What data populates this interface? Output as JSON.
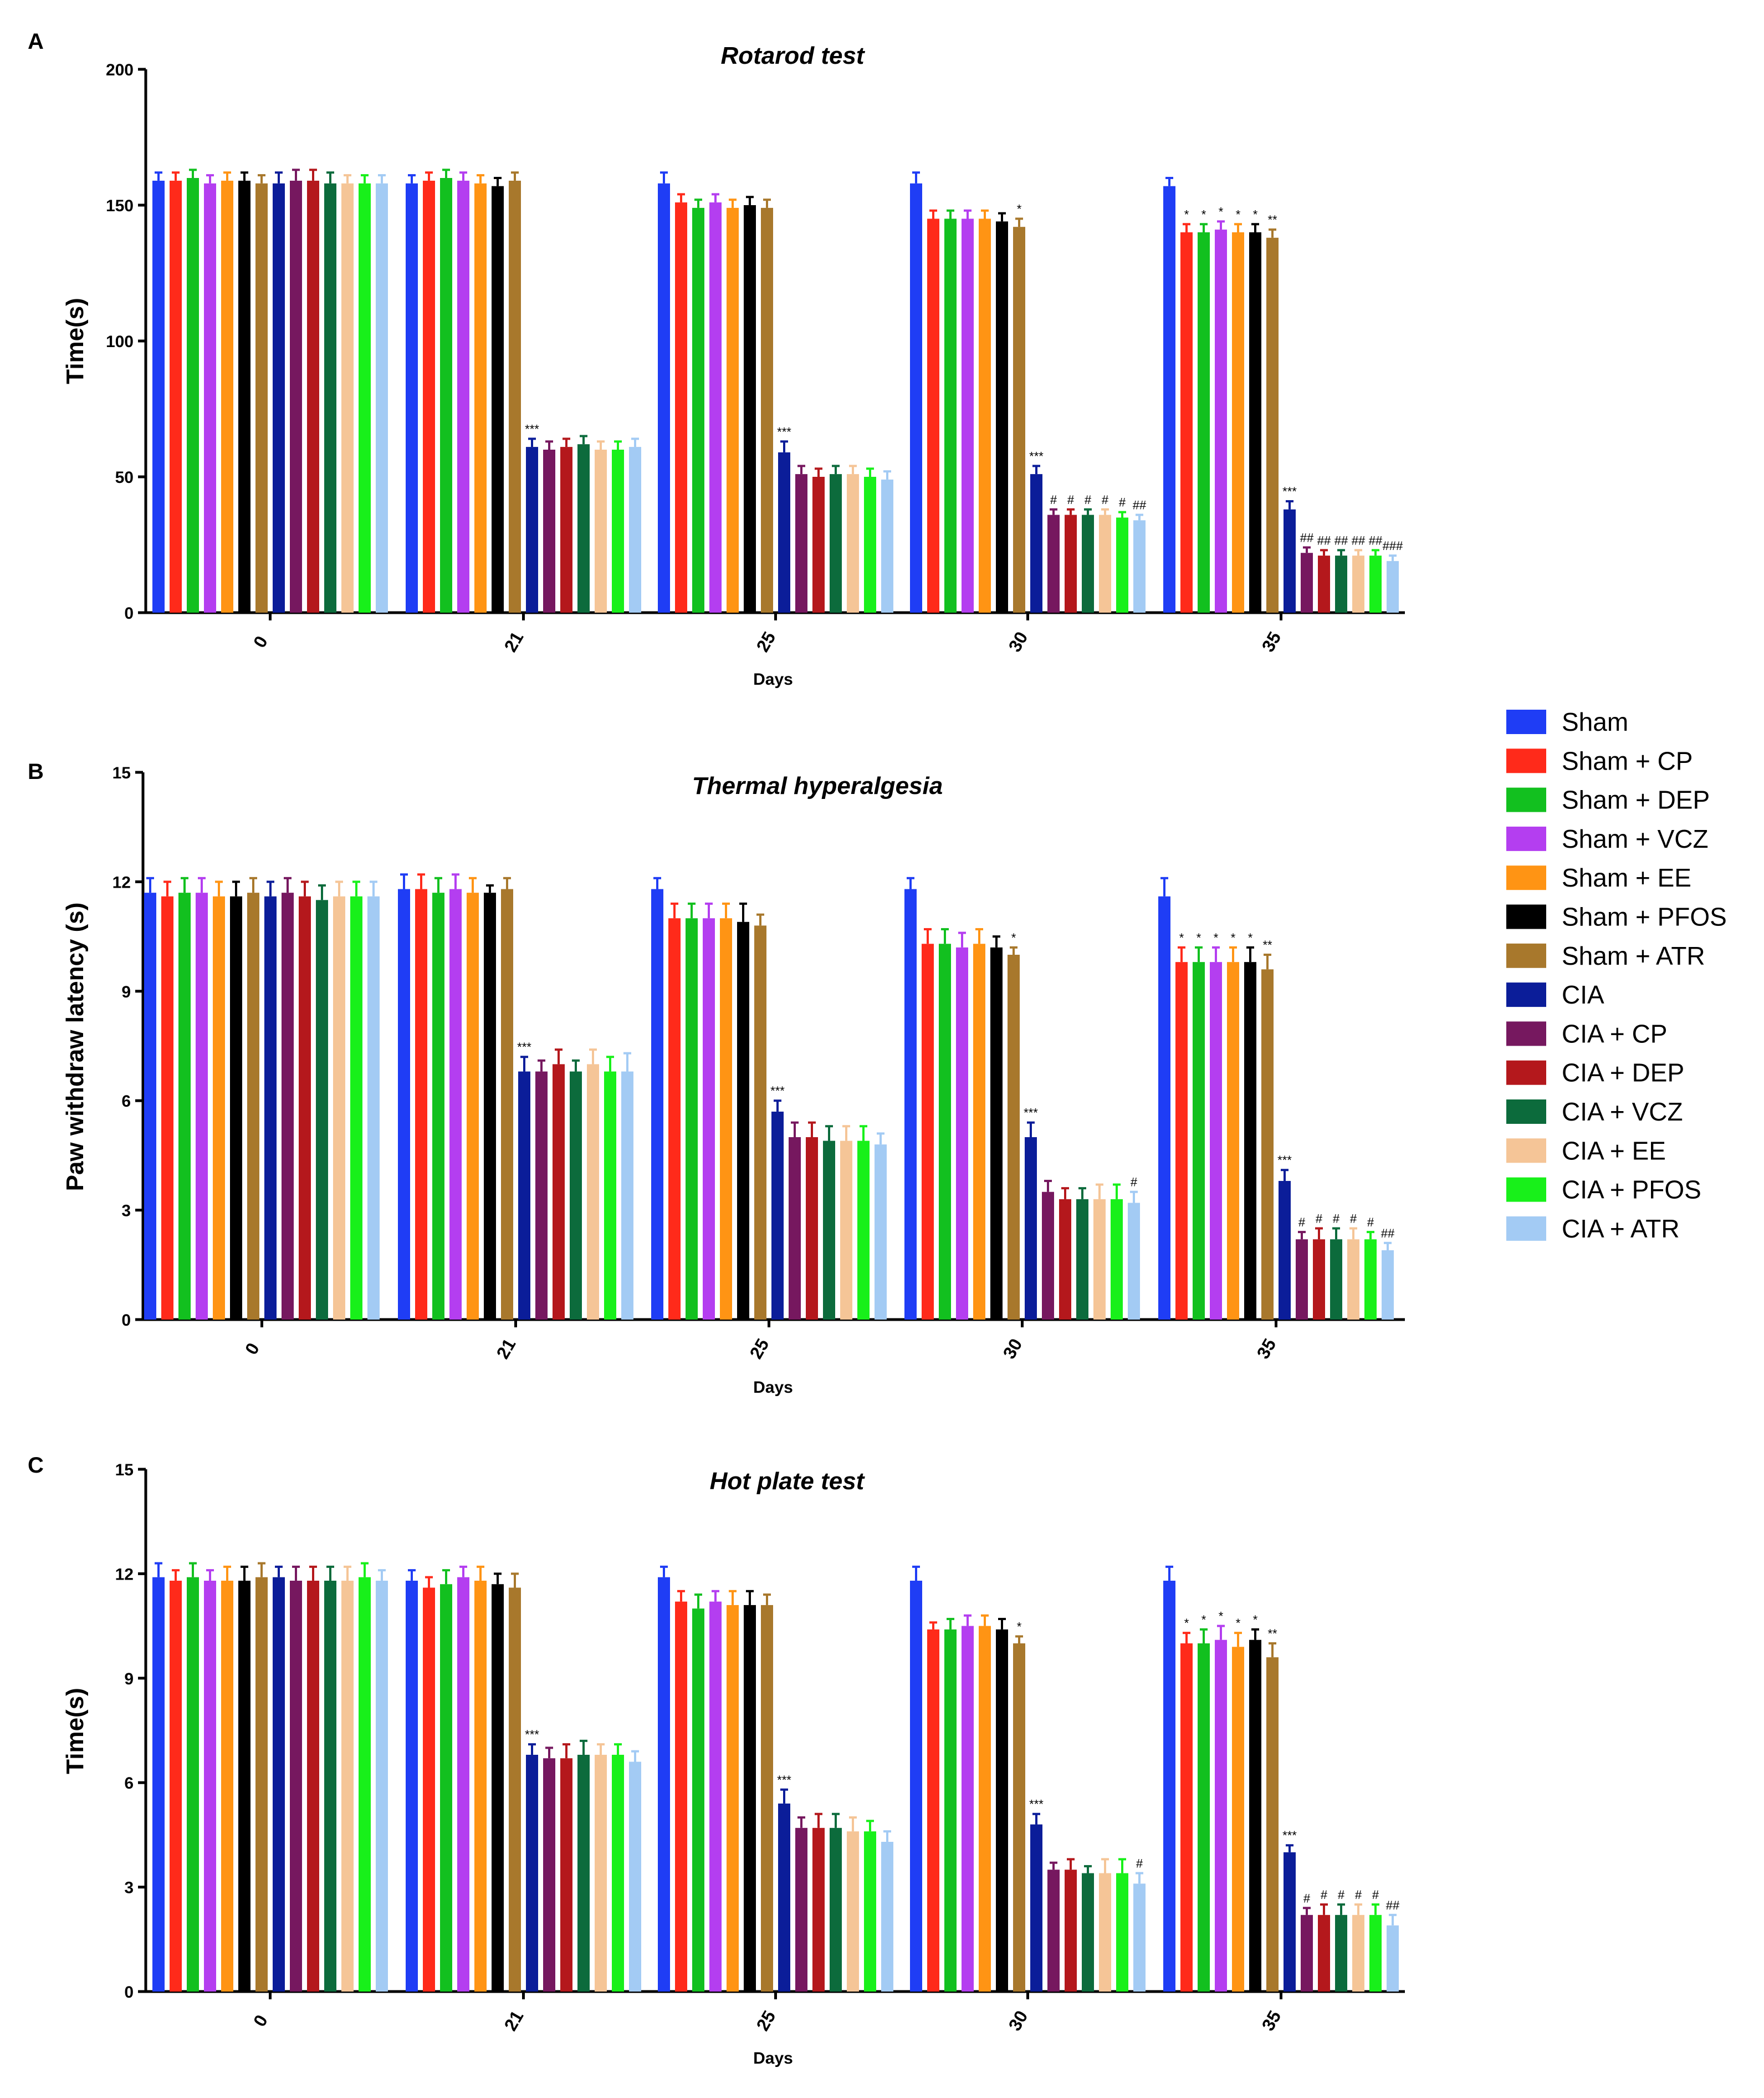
{
  "legend_title": "",
  "series_names": [
    "Sham",
    "Sham + CP",
    "Sham + DEP",
    "Sham + VCZ",
    "Sham + EE",
    "Sham + PFOS",
    "Sham + ATR",
    "CIA",
    "CIA + CP",
    "CIA + DEP",
    "CIA + VCZ",
    "CIA + EE",
    "CIA + PFOS",
    "CIA + ATR"
  ],
  "series_colors": [
    "#1f3df5",
    "#ff2a1a",
    "#12c01f",
    "#b43ef0",
    "#ff9414",
    "#000000",
    "#a8782c",
    "#0b1d99",
    "#76185f",
    "#b4181c",
    "#0c6b3c",
    "#f5c597",
    "#18f01a",
    "#a3cbf4"
  ],
  "chart_data": [
    {
      "panel": "A",
      "type": "bar",
      "title": "Rotarod test",
      "xlabel": "Days",
      "ylabel": "Time(s)",
      "ylim": [
        0,
        200
      ],
      "yticks": [
        "0",
        "50",
        "100",
        "150",
        "200"
      ],
      "categories": [
        "0",
        "21",
        "25",
        "30",
        "35"
      ],
      "values": [
        [
          159,
          159,
          160,
          158,
          159,
          159,
          158,
          158,
          159,
          159,
          158,
          158,
          158,
          158
        ],
        [
          158,
          159,
          160,
          159,
          158,
          157,
          159,
          61,
          60,
          61,
          62,
          60,
          60,
          61
        ],
        [
          158,
          151,
          149,
          151,
          149,
          150,
          149,
          59,
          51,
          50,
          51,
          51,
          50,
          49
        ],
        [
          158,
          145,
          145,
          145,
          145,
          144,
          142,
          51,
          36,
          36,
          36,
          36,
          35,
          34
        ],
        [
          157,
          140,
          140,
          141,
          140,
          140,
          138,
          38,
          22,
          21,
          21,
          21,
          21,
          19
        ]
      ],
      "errors": [
        [
          3,
          3,
          3,
          3,
          3,
          3,
          3,
          4,
          4,
          4,
          4,
          3,
          3,
          3
        ],
        [
          3,
          3,
          3,
          3,
          3,
          3,
          3,
          3,
          3,
          3,
          3,
          3,
          3,
          3
        ],
        [
          4,
          3,
          3,
          3,
          3,
          3,
          3,
          4,
          3,
          3,
          3,
          3,
          3,
          3
        ],
        [
          4,
          3,
          3,
          3,
          3,
          3,
          3,
          3,
          2,
          2,
          2,
          2,
          2,
          2
        ],
        [
          3,
          3,
          3,
          3,
          3,
          3,
          3,
          3,
          2,
          2,
          2,
          2,
          2,
          2
        ]
      ],
      "annotations": [
        [
          "",
          "",
          "",
          "",
          "",
          "",
          "",
          "",
          "",
          "",
          "",
          "",
          "",
          ""
        ],
        [
          "",
          "",
          "",
          "",
          "",
          "",
          "",
          "***",
          "",
          "",
          "",
          "",
          "",
          ""
        ],
        [
          "",
          "",
          "",
          "",
          "",
          "",
          "",
          "***",
          "",
          "",
          "",
          "",
          "",
          ""
        ],
        [
          "",
          "",
          "",
          "",
          "",
          "",
          "*",
          "***",
          "#",
          "#",
          "#",
          "#",
          "#",
          "##"
        ],
        [
          "",
          "*",
          "*",
          "*",
          "*",
          "*",
          "**",
          "***",
          "##",
          "##",
          "##",
          "##",
          "##",
          "###"
        ]
      ]
    },
    {
      "panel": "B",
      "type": "bar",
      "title": "Thermal hyperalgesia",
      "xlabel": "Days",
      "ylabel": "Paw withdraw latency (s)",
      "ylim": [
        0,
        15
      ],
      "yticks": [
        "0",
        "3",
        "6",
        "9",
        "12",
        "15"
      ],
      "categories": [
        "0",
        "21",
        "25",
        "30",
        "35"
      ],
      "values": [
        [
          11.7,
          11.6,
          11.7,
          11.7,
          11.6,
          11.6,
          11.7,
          11.6,
          11.7,
          11.6,
          11.5,
          11.6,
          11.6,
          11.6
        ],
        [
          11.8,
          11.8,
          11.7,
          11.8,
          11.7,
          11.7,
          11.8,
          6.8,
          6.8,
          7.0,
          6.8,
          7.0,
          6.8,
          6.8
        ],
        [
          11.8,
          11.0,
          11.0,
          11.0,
          11.0,
          10.9,
          10.8,
          5.7,
          5.0,
          5.0,
          4.9,
          4.9,
          4.9,
          4.8
        ],
        [
          11.8,
          10.3,
          10.3,
          10.2,
          10.3,
          10.2,
          10.0,
          5.0,
          3.5,
          3.3,
          3.3,
          3.3,
          3.3,
          3.2
        ],
        [
          11.6,
          9.8,
          9.8,
          9.8,
          9.8,
          9.8,
          9.6,
          3.8,
          2.2,
          2.2,
          2.2,
          2.2,
          2.2,
          1.9
        ]
      ],
      "errors": [
        [
          0.4,
          0.4,
          0.4,
          0.4,
          0.4,
          0.4,
          0.4,
          0.4,
          0.4,
          0.4,
          0.4,
          0.4,
          0.4,
          0.4
        ],
        [
          0.4,
          0.4,
          0.4,
          0.4,
          0.4,
          0.2,
          0.3,
          0.4,
          0.3,
          0.4,
          0.3,
          0.4,
          0.4,
          0.5
        ],
        [
          0.3,
          0.4,
          0.4,
          0.4,
          0.4,
          0.5,
          0.3,
          0.3,
          0.4,
          0.4,
          0.4,
          0.4,
          0.4,
          0.3
        ],
        [
          0.3,
          0.4,
          0.4,
          0.4,
          0.4,
          0.3,
          0.2,
          0.4,
          0.3,
          0.3,
          0.3,
          0.4,
          0.4,
          0.3
        ],
        [
          0.5,
          0.4,
          0.4,
          0.4,
          0.4,
          0.4,
          0.4,
          0.3,
          0.2,
          0.3,
          0.3,
          0.3,
          0.2,
          0.2
        ]
      ],
      "annotations": [
        [
          "",
          "",
          "",
          "",
          "",
          "",
          "",
          "",
          "",
          "",
          "",
          "",
          "",
          ""
        ],
        [
          "",
          "",
          "",
          "",
          "",
          "",
          "",
          "***",
          "",
          "",
          "",
          "",
          "",
          ""
        ],
        [
          "",
          "",
          "",
          "",
          "",
          "",
          "",
          "***",
          "",
          "",
          "",
          "",
          "",
          ""
        ],
        [
          "",
          "",
          "",
          "",
          "",
          "",
          "*",
          "***",
          "",
          "",
          "",
          "",
          "",
          "#"
        ],
        [
          "",
          "*",
          "*",
          "*",
          "*",
          "*",
          "**",
          "***",
          "#",
          "#",
          "#",
          "#",
          "#",
          "##"
        ]
      ]
    },
    {
      "panel": "C",
      "type": "bar",
      "title": "Hot plate test",
      "xlabel": "Days",
      "ylabel": "Time(s)",
      "ylim": [
        0,
        15
      ],
      "yticks": [
        "0",
        "3",
        "6",
        "9",
        "12",
        "15"
      ],
      "categories": [
        "0",
        "21",
        "25",
        "30",
        "35"
      ],
      "values": [
        [
          11.9,
          11.8,
          11.9,
          11.8,
          11.8,
          11.8,
          11.9,
          11.9,
          11.8,
          11.8,
          11.8,
          11.8,
          11.9,
          11.8
        ],
        [
          11.8,
          11.6,
          11.7,
          11.9,
          11.8,
          11.7,
          11.6,
          6.8,
          6.7,
          6.7,
          6.8,
          6.8,
          6.8,
          6.6
        ],
        [
          11.9,
          11.2,
          11.0,
          11.2,
          11.1,
          11.1,
          11.1,
          5.4,
          4.7,
          4.7,
          4.7,
          4.6,
          4.6,
          4.3
        ],
        [
          11.8,
          10.4,
          10.4,
          10.5,
          10.5,
          10.4,
          10.0,
          4.8,
          3.5,
          3.5,
          3.4,
          3.4,
          3.4,
          3.1
        ],
        [
          11.8,
          10.0,
          10.0,
          10.1,
          9.9,
          10.1,
          9.6,
          4.0,
          2.2,
          2.2,
          2.2,
          2.2,
          2.2,
          1.9
        ]
      ],
      "errors": [
        [
          0.4,
          0.3,
          0.4,
          0.3,
          0.4,
          0.4,
          0.4,
          0.3,
          0.4,
          0.4,
          0.4,
          0.4,
          0.4,
          0.3
        ],
        [
          0.3,
          0.3,
          0.4,
          0.3,
          0.4,
          0.3,
          0.4,
          0.3,
          0.3,
          0.4,
          0.4,
          0.3,
          0.3,
          0.3
        ],
        [
          0.3,
          0.3,
          0.4,
          0.3,
          0.4,
          0.4,
          0.3,
          0.4,
          0.3,
          0.4,
          0.4,
          0.4,
          0.3,
          0.3
        ],
        [
          0.4,
          0.2,
          0.3,
          0.3,
          0.3,
          0.3,
          0.2,
          0.3,
          0.2,
          0.3,
          0.2,
          0.4,
          0.4,
          0.3
        ],
        [
          0.4,
          0.3,
          0.4,
          0.4,
          0.4,
          0.3,
          0.4,
          0.2,
          0.2,
          0.3,
          0.3,
          0.3,
          0.3,
          0.3
        ]
      ],
      "annotations": [
        [
          "",
          "",
          "",
          "",
          "",
          "",
          "",
          "",
          "",
          "",
          "",
          "",
          "",
          ""
        ],
        [
          "",
          "",
          "",
          "",
          "",
          "",
          "",
          "***",
          "",
          "",
          "",
          "",
          "",
          ""
        ],
        [
          "",
          "",
          "",
          "",
          "",
          "",
          "",
          "***",
          "",
          "",
          "",
          "",
          "",
          ""
        ],
        [
          "",
          "",
          "",
          "",
          "",
          "",
          "*",
          "***",
          "",
          "",
          "",
          "",
          "",
          "#"
        ],
        [
          "",
          "*",
          "*",
          "*",
          "*",
          "*",
          "**",
          "***",
          "#",
          "#",
          "#",
          "#",
          "#",
          "##"
        ]
      ]
    }
  ]
}
